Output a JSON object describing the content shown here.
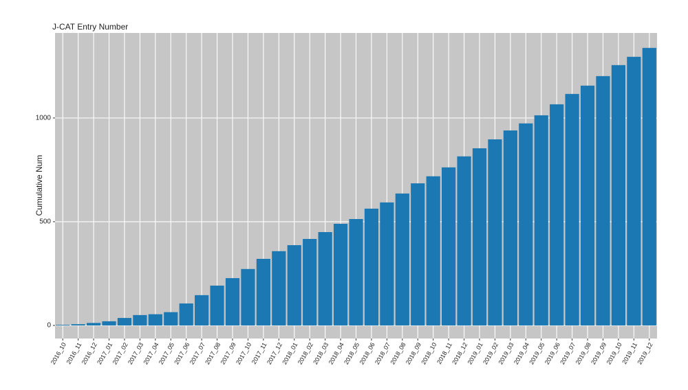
{
  "chart_data": {
    "type": "bar",
    "title": "J-CAT Entry Number",
    "y_label": "Cumulative Num",
    "categories": [
      "2016_10",
      "2016_11",
      "2016_12",
      "2017_01",
      "2017_02",
      "2017_03",
      "2017_04",
      "2017_05",
      "2017_06",
      "2017_07",
      "2017_08",
      "2017_09",
      "2017_10",
      "2017_11",
      "2017_12",
      "2018_01",
      "2018_02",
      "2018_03",
      "2018_04",
      "2018_05",
      "2018_06",
      "2018_07",
      "2018_08",
      "2018_09",
      "2018_10",
      "2018_11",
      "2018_12",
      "2019_01",
      "2019_02",
      "2019_03",
      "2019_04",
      "2019_05",
      "2019_06",
      "2019_07",
      "2019_08",
      "2019_09",
      "2019_10",
      "2019_11",
      "2019_12"
    ],
    "values": [
      3,
      6,
      12,
      20,
      36,
      50,
      54,
      64,
      106,
      146,
      192,
      228,
      272,
      321,
      358,
      387,
      417,
      450,
      490,
      513,
      563,
      593,
      636,
      685,
      719,
      762,
      815,
      854,
      897,
      940,
      974,
      1013,
      1066,
      1116,
      1156,
      1202,
      1255,
      1295,
      1338
    ],
    "color": "#1b78b3",
    "ylim": [
      -63,
      1410
    ],
    "yticks": [
      0,
      500,
      1000
    ],
    "grid": true
  }
}
